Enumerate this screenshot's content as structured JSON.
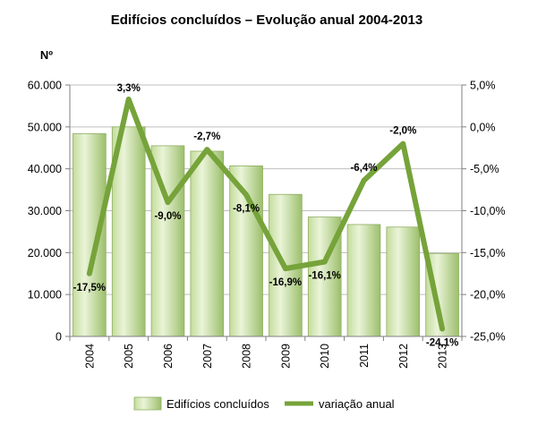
{
  "chart_data": {
    "type": "bar+line",
    "title": "Edifícios concluídos – Evolução anual 2004-2013",
    "left_axis_label": "Nº",
    "categories": [
      "2004",
      "2005",
      "2006",
      "2007",
      "2008",
      "2009",
      "2010",
      "2011",
      "2012",
      "2013"
    ],
    "series": [
      {
        "name": "Edifícios concluídos",
        "type": "bar",
        "axis": "left",
        "values": [
          48400,
          50000,
          45500,
          44200,
          40700,
          33900,
          28500,
          26700,
          26100,
          19800
        ]
      },
      {
        "name": "variação anual",
        "type": "line",
        "axis": "right",
        "values": [
          -17.5,
          3.3,
          -9.0,
          -2.7,
          -8.1,
          -16.9,
          -16.1,
          -6.4,
          -2.0,
          -24.1
        ],
        "labels": [
          "-17,5%",
          "3,3%",
          "-9,0%",
          "-2,7%",
          "-8,1%",
          "-16,9%",
          "-16,1%",
          "-6,4%",
          "-2,0%",
          "-24,1%"
        ]
      }
    ],
    "left_axis": {
      "ylim": [
        0,
        60000
      ],
      "ticks": [
        0,
        10000,
        20000,
        30000,
        40000,
        50000,
        60000
      ],
      "tick_labels": [
        "0",
        "10.000",
        "20.000",
        "30.000",
        "40.000",
        "50.000",
        "60.000"
      ]
    },
    "right_axis": {
      "ylim": [
        -25,
        5
      ],
      "ticks": [
        5,
        0,
        -5,
        -10,
        -15,
        -20,
        -25
      ],
      "tick_labels": [
        "5,0%",
        "0,0%",
        "-5,0%",
        "-10,0%",
        "-15,0%",
        "-20,0%",
        "-25,0%"
      ]
    },
    "legend": {
      "position": "bottom",
      "entries": [
        "Edifícios concluídos",
        "variação anual"
      ]
    },
    "colors": {
      "bar_light": "#eaf4d8",
      "bar_mid": "#c4dc9c",
      "bar_dark": "#9cbf6c",
      "bar_edge": "#8fae62",
      "line": "#76a33a",
      "grid": "#bfbfbf",
      "axis": "#7f7f7f"
    }
  }
}
